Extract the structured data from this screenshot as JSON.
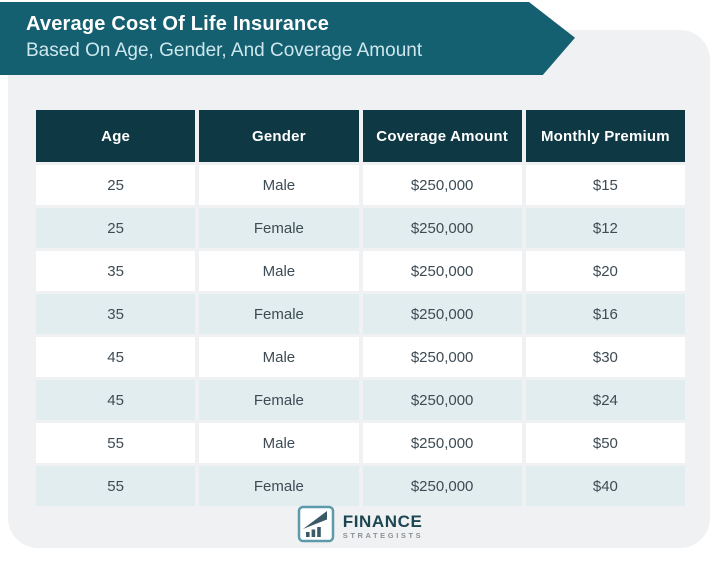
{
  "banner": {
    "title": "Average Cost Of Life Insurance",
    "subtitle": "Based On Age, Gender, And Coverage Amount"
  },
  "chart_data": {
    "type": "table",
    "title": "Average Cost Of Life Insurance",
    "subtitle": "Based On Age, Gender, And Coverage Amount",
    "columns": [
      "Age",
      "Gender",
      "Coverage Amount",
      "Monthly Premium"
    ],
    "rows": [
      [
        "25",
        "Male",
        "$250,000",
        "$15"
      ],
      [
        "25",
        "Female",
        "$250,000",
        "$12"
      ],
      [
        "35",
        "Male",
        "$250,000",
        "$20"
      ],
      [
        "35",
        "Female",
        "$250,000",
        "$16"
      ],
      [
        "45",
        "Male",
        "$250,000",
        "$30"
      ],
      [
        "45",
        "Female",
        "$250,000",
        "$24"
      ],
      [
        "55",
        "Male",
        "$250,000",
        "$50"
      ],
      [
        "55",
        "Female",
        "$250,000",
        "$40"
      ]
    ]
  },
  "footer": {
    "brand_name": "FINANCE",
    "brand_subname": "STRATEGISTS"
  },
  "colors": {
    "banner_bg": "#145f70",
    "header_bg": "#0e3944",
    "row_alt_bg": "#e2edef",
    "row_bg": "#ffffff",
    "card_bg": "#f0f1f2",
    "title_color": "#ffffff",
    "subtitle_color": "#cde7ed",
    "body_text": "#3d4b54",
    "brand_text": "#1d4653",
    "brand_sub_text": "#8b9298"
  }
}
